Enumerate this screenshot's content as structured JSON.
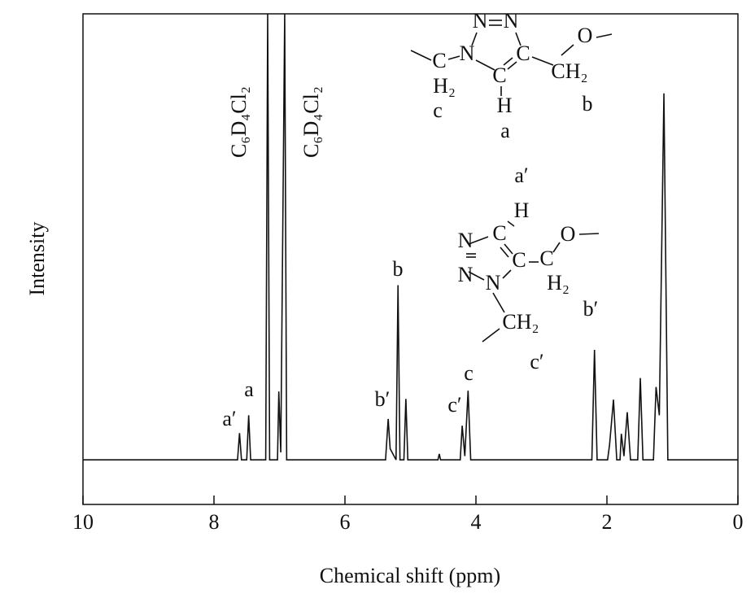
{
  "chart_data": {
    "type": "line",
    "x_label": "Chemical shift (ppm)",
    "y_label": "Intensity",
    "xlim": [
      10,
      0
    ],
    "xticks": [
      10,
      8,
      6,
      4,
      2,
      0
    ],
    "ylim": [
      -0.6,
      6
    ],
    "color": "#111111",
    "x": [
      10,
      7.64,
      7.61,
      7.58,
      7.5,
      7.47,
      7.44,
      7.21,
      7.18,
      7.15,
      7.03,
      7.01,
      6.98,
      6.92,
      6.89,
      5.38,
      5.34,
      5.31,
      5.22,
      5.19,
      5.16,
      5.1,
      5.07,
      5.04,
      4.58,
      4.56,
      4.54,
      4.24,
      4.21,
      4.17,
      4.12,
      4.08,
      2.23,
      2.19,
      2.15,
      1.99,
      1.96,
      1.9,
      1.85,
      1.8,
      1.78,
      1.74,
      1.69,
      1.64,
      1.53,
      1.49,
      1.45,
      1.29,
      1.25,
      1.2,
      1.13,
      1.07,
      0
    ],
    "values": [
      0,
      0,
      0.36,
      0,
      0,
      0.6,
      0,
      0,
      6,
      0,
      0,
      0.92,
      0.1,
      6,
      0,
      0,
      0.55,
      0.15,
      0,
      2.35,
      0,
      0,
      0.82,
      0,
      0,
      0.08,
      0,
      0,
      0.46,
      0.05,
      0.93,
      0,
      0,
      1.48,
      0,
      0,
      0.2,
      0.81,
      0,
      0,
      0.35,
      0.05,
      0.64,
      0,
      0,
      1.1,
      0,
      0,
      0.98,
      0.6,
      4.93,
      0,
      0
    ],
    "peak_labels": [
      "a′",
      "a",
      "b′",
      "b",
      "c′",
      "c"
    ],
    "solvent_labels": [
      "C₆D₄Cl₂",
      "C₆D₄Cl₂"
    ],
    "structure_1": [
      "N",
      "N",
      "N",
      "C",
      "H₂",
      "C",
      "H",
      "C",
      "CH₂",
      "O",
      "c",
      "a",
      "b"
    ],
    "structure_2": [
      "a′",
      "H",
      "C",
      "N",
      "N",
      "N",
      "C",
      "C",
      "O",
      "H₂",
      "CH₂",
      "b′",
      "c′"
    ]
  }
}
